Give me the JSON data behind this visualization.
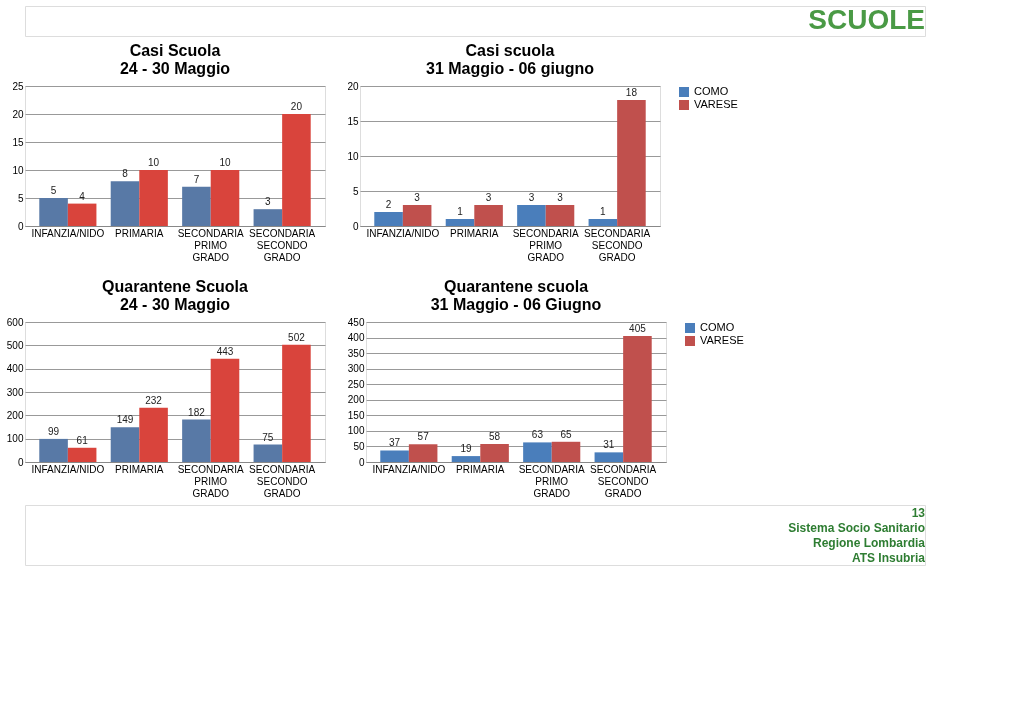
{
  "chart_data": [
    {
      "type": "bar",
      "title": "Casi Scuola\n24 - 30 Maggio",
      "categories": [
        "INFANZIA/NIDO",
        "PRIMARIA",
        "SECONDARIA PRIMO GRADO",
        "SECONDARIA SECONDO GRADO"
      ],
      "series": [
        {
          "color": "#5879a6",
          "values": [
            5,
            8,
            7,
            3
          ]
        },
        {
          "color": "#d9443c",
          "values": [
            4,
            10,
            10,
            20
          ]
        }
      ],
      "ylim": [
        0,
        25
      ],
      "yticks": [
        0,
        5,
        10,
        15,
        20,
        25
      ],
      "grid": "y",
      "data_labels": true,
      "legend": false,
      "annotations": [
        "SCUOLE"
      ]
    },
    {
      "type": "bar",
      "title": "Casi scuola\n31 Maggio - 06 giugno",
      "categories": [
        "INFANZIA/NIDO",
        "PRIMARIA",
        "SECONDARIA PRIMO GRADO",
        "SECONDARIA SECONDO GRADO"
      ],
      "series": [
        {
          "name": "COMO",
          "color": "#4a7ebb",
          "values": [
            2,
            1,
            3,
            1
          ]
        },
        {
          "name": "VARESE",
          "color": "#c0504d",
          "values": [
            3,
            3,
            3,
            18
          ]
        }
      ],
      "ylim": [
        0,
        20
      ],
      "yticks": [
        0,
        5,
        10,
        15,
        20
      ],
      "grid": "y",
      "data_labels": true,
      "legend": "right"
    },
    {
      "type": "bar",
      "title": "Quarantene Scuola\n24 - 30 Maggio",
      "categories": [
        "INFANZIA/NIDO",
        "PRIMARIA",
        "SECONDARIA PRIMO GRADO",
        "SECONDARIA SECONDO GRADO"
      ],
      "series": [
        {
          "color": "#5879a6",
          "values": [
            99,
            149,
            182,
            75
          ]
        },
        {
          "color": "#d9443c",
          "values": [
            61,
            232,
            443,
            502
          ]
        }
      ],
      "ylim": [
        0,
        600
      ],
      "yticks": [
        0,
        100,
        200,
        300,
        400,
        500,
        600
      ],
      "grid": "y",
      "data_labels": true,
      "legend": false
    },
    {
      "type": "bar",
      "title": "Quarantene scuola\n31 Maggio - 06 Giugno",
      "categories": [
        "INFANZIA/NIDO",
        "PRIMARIA",
        "SECONDARIA PRIMO GRADO",
        "SECONDARIA SECONDO GRADO"
      ],
      "series": [
        {
          "name": "COMO",
          "color": "#4a7ebb",
          "values": [
            37,
            19,
            63,
            31
          ]
        },
        {
          "name": "VARESE",
          "color": "#c0504d",
          "values": [
            57,
            58,
            65,
            405
          ]
        }
      ],
      "ylim": [
        0,
        450
      ],
      "yticks": [
        0,
        50,
        100,
        150,
        200,
        250,
        300,
        350,
        400,
        450
      ],
      "grid": "y",
      "data_labels": true,
      "legend": "right",
      "annotations": [
        "13",
        "Sistema Socio Sanitario",
        "Regione Lombardia",
        "ATS Insubria"
      ]
    }
  ]
}
